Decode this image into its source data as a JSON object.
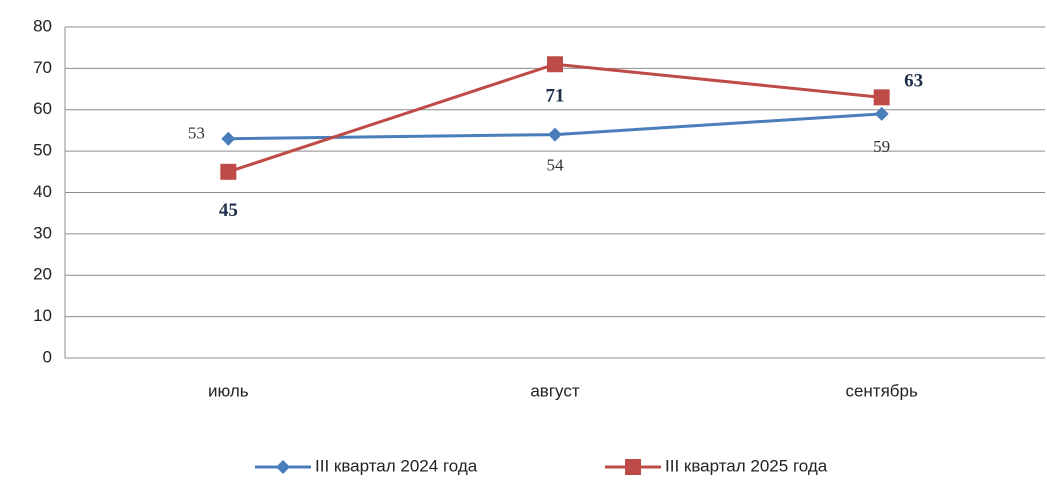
{
  "chart_data": {
    "type": "line",
    "categories": [
      "июль",
      "август",
      "сентябрь"
    ],
    "series": [
      {
        "name": "III квартал 2024 года",
        "color": "#4a7ebb",
        "marker": "diamond",
        "values": [
          53,
          54,
          59
        ]
      },
      {
        "name": "III квартал 2025 года",
        "color": "#be4b48",
        "marker": "square",
        "values": [
          45,
          71,
          63
        ]
      }
    ],
    "ylim": [
      0,
      80
    ],
    "yticks": [
      0,
      10,
      20,
      30,
      40,
      50,
      60,
      70,
      80
    ],
    "grid": true,
    "legend": "bottom"
  }
}
